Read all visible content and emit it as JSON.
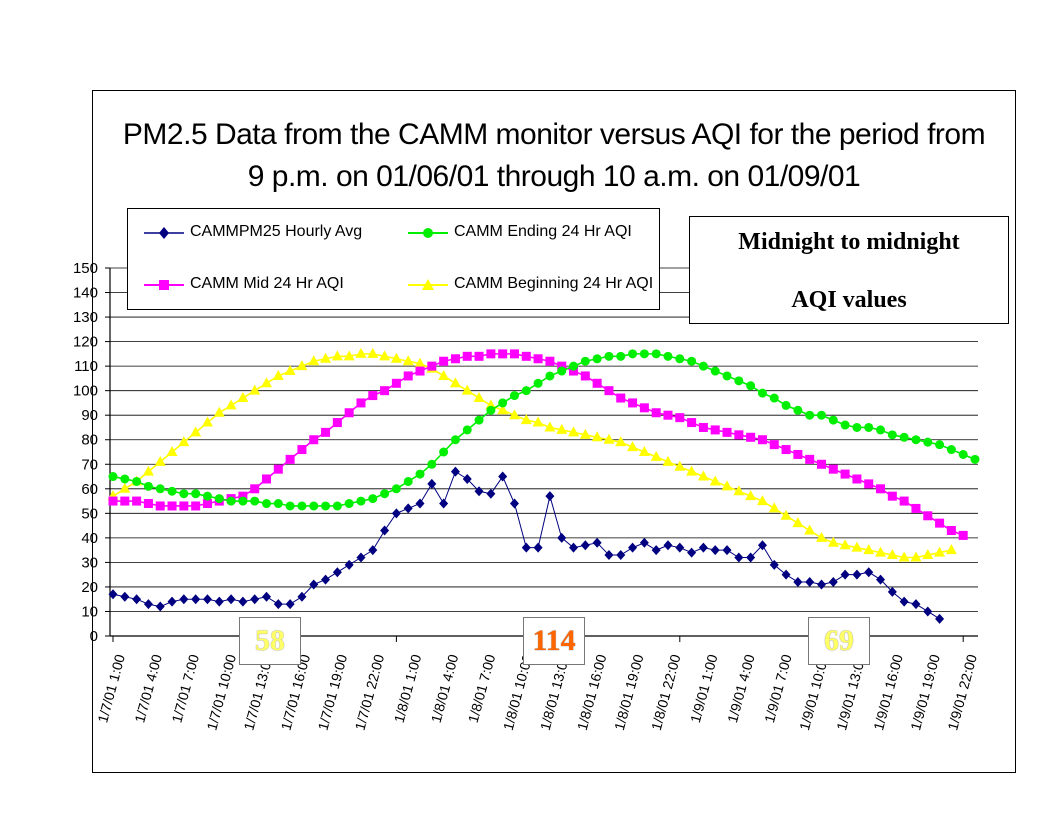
{
  "title_line1": "PM2.5 Data from the CAMM monitor versus AQI for the period from",
  "title_line2": "9 p.m. on 01/06/01 through 10 a.m. on 01/09/01",
  "note": {
    "line1": "Midnight to midnight",
    "line2": "AQI values"
  },
  "aqi_labels": [
    {
      "value": "58",
      "color": "#ffff66"
    },
    {
      "value": "114",
      "color": "#ff6600"
    },
    {
      "value": "69",
      "color": "#ffff66"
    }
  ],
  "chart_data": {
    "type": "line",
    "title": "PM2.5 Data from the CAMM monitor versus AQI for the period from 9 p.m. on 01/06/01 through 10 a.m. on 01/09/01",
    "xlabel": "",
    "ylabel": "",
    "ylim": [
      0,
      150
    ],
    "ytick_step": 10,
    "grid": true,
    "legend_position": "top-left",
    "x_tick_labels": [
      "1/7/01 1:00",
      "1/7/01 4:00",
      "1/7/01 7:00",
      "1/7/01 10:00",
      "1/7/01 13:00",
      "1/7/01 16:00",
      "1/7/01 19:00",
      "1/7/01 22:00",
      "1/8/01 1:00",
      "1/8/01 4:00",
      "1/8/01 7:00",
      "1/8/01 10:00",
      "1/8/01 13:00",
      "1/8/01 16:00",
      "1/8/01 19:00",
      "1/8/01 22:00",
      "1/9/01 1:00",
      "1/9/01 4:00",
      "1/9/01 7:00",
      "1/9/01 10:00",
      "1/9/01 13:00",
      "1/9/01 16:00",
      "1/9/01 19:00",
      "1/9/01 22:00"
    ],
    "series": [
      {
        "name": "CAMMPM25 Hourly Avg",
        "color": "#000080",
        "marker": "diamond",
        "values": [
          17,
          16,
          15,
          13,
          12,
          14,
          15,
          15,
          15,
          14,
          15,
          14,
          15,
          16,
          13,
          13,
          16,
          21,
          23,
          26,
          29,
          32,
          35,
          43,
          50,
          52,
          54,
          62,
          54,
          67,
          64,
          59,
          58,
          65,
          54,
          36,
          36,
          57,
          40,
          36,
          37,
          38,
          33,
          33,
          36,
          38,
          35,
          37,
          36,
          34,
          36,
          35,
          35,
          32,
          32,
          37,
          29,
          25,
          22,
          22,
          21,
          22,
          25,
          25,
          26,
          23,
          18,
          14,
          13,
          10,
          7
        ],
        "legend_pos": 0
      },
      {
        "name": "CAMM Ending 24 Hr AQI",
        "color": "#00ee00",
        "marker": "circle",
        "values": [
          65,
          64,
          63,
          61,
          60,
          59,
          58,
          58,
          57,
          56,
          55,
          55,
          55,
          54,
          54,
          53,
          53,
          53,
          53,
          53,
          54,
          55,
          56,
          58,
          60,
          63,
          66,
          70,
          75,
          80,
          84,
          88,
          92,
          95,
          98,
          100,
          103,
          106,
          108,
          110,
          112,
          113,
          114,
          114,
          115,
          115,
          115,
          114,
          113,
          112,
          110,
          108,
          106,
          104,
          102,
          99,
          97,
          94,
          92,
          90,
          90,
          88,
          86,
          85,
          85,
          84,
          82,
          81,
          80,
          79,
          78,
          76,
          74,
          72
        ]
      },
      {
        "name": "CAMM Mid 24 Hr AQI",
        "color": "#ff00ff",
        "marker": "square",
        "values": [
          55,
          55,
          55,
          54,
          53,
          53,
          53,
          53,
          54,
          55,
          56,
          57,
          60,
          64,
          68,
          72,
          76,
          80,
          83,
          87,
          91,
          95,
          98,
          100,
          103,
          106,
          108,
          110,
          112,
          113,
          114,
          114,
          115,
          115,
          115,
          114,
          113,
          112,
          110,
          108,
          106,
          103,
          100,
          97,
          95,
          93,
          91,
          90,
          89,
          87,
          85,
          84,
          83,
          82,
          81,
          80,
          78,
          76,
          74,
          72,
          70,
          68,
          66,
          64,
          62,
          60,
          57,
          55,
          52,
          49,
          46,
          43,
          41
        ]
      },
      {
        "name": "CAMM Beginning 24 Hr AQI",
        "color": "#ffff00",
        "marker": "triangle",
        "values": [
          57,
          60,
          63,
          67,
          71,
          75,
          79,
          83,
          87,
          91,
          94,
          97,
          100,
          103,
          106,
          108,
          110,
          112,
          113,
          114,
          114,
          115,
          115,
          114,
          113,
          112,
          111,
          109,
          106,
          103,
          100,
          97,
          94,
          92,
          90,
          88,
          87,
          85,
          84,
          83,
          82,
          81,
          80,
          79,
          77,
          75,
          73,
          71,
          69,
          67,
          65,
          63,
          61,
          59,
          57,
          55,
          52,
          49,
          46,
          43,
          40,
          38,
          37,
          36,
          35,
          34,
          33,
          32,
          32,
          33,
          34,
          35
        ]
      }
    ]
  }
}
